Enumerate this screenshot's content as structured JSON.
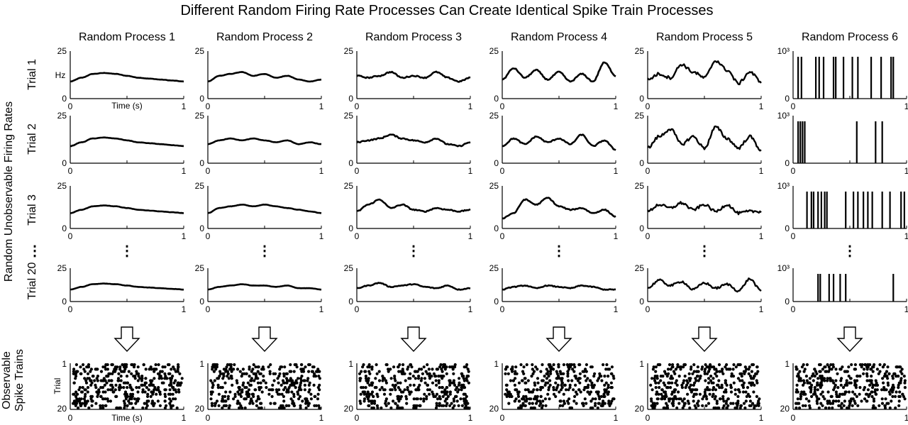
{
  "title": "Different Random Firing Rate Processes Can Create Identical Spike Train Processes",
  "side_labels": {
    "rates": "Random Unobservable Firing Rates",
    "spikes_line1": "Observable",
    "spikes_line2": "Spike Trains"
  },
  "ellipsis": "⋮",
  "rate_units": "Hz",
  "time_label": "Time (s)",
  "trial_axis_label": "Trial",
  "rows": [
    {
      "label": "Trial 1"
    },
    {
      "label": "Trial 2"
    },
    {
      "label": "Trial 3"
    },
    {
      "label": "Trial 20"
    }
  ],
  "colors": {
    "ink": "#000000",
    "background": "#ffffff"
  },
  "chart_data": {
    "type": "line",
    "description_note": "",
    "x_range": [
      0,
      1
    ],
    "x_ticks": [
      "0",
      "1"
    ],
    "raster": {
      "y_ticks": [
        "1",
        "20"
      ],
      "trials": 20,
      "spikes_per_trial_approx": 20
    },
    "panels": [
      {
        "title": "Random Process 1",
        "y_ticks": [
          "0",
          "25"
        ],
        "y_range": [
          0,
          25
        ],
        "trials": [
          {
            "x": [
              0,
              0.1,
              0.2,
              0.3,
              0.4,
              0.5,
              0.6,
              0.7,
              0.8,
              0.9,
              1
            ],
            "y": [
              9,
              11,
              13,
              13.5,
              13,
              12,
              11,
              10.5,
              10,
              9.5,
              9
            ]
          },
          {
            "x": [
              0,
              0.1,
              0.2,
              0.3,
              0.4,
              0.5,
              0.6,
              0.7,
              0.8,
              0.9,
              1
            ],
            "y": [
              9,
              11,
              13,
              13.5,
              13,
              12,
              11,
              10.5,
              10,
              9.5,
              9
            ]
          },
          {
            "x": [
              0,
              0.1,
              0.2,
              0.3,
              0.4,
              0.5,
              0.6,
              0.7,
              0.8,
              0.9,
              1
            ],
            "y": [
              9,
              11,
              13,
              13.5,
              13,
              12,
              11,
              10.5,
              10,
              9.5,
              9
            ]
          },
          {
            "x": [
              0,
              0.1,
              0.2,
              0.3,
              0.4,
              0.5,
              0.6,
              0.7,
              0.8,
              0.9,
              1
            ],
            "y": [
              9,
              11,
              13,
              13.5,
              13,
              12,
              11,
              10.5,
              10,
              9.5,
              9
            ]
          }
        ]
      },
      {
        "title": "Random Process 2",
        "y_ticks": [
          "0",
          "25"
        ],
        "y_range": [
          0,
          25
        ],
        "trials": [
          {
            "x": [
              0,
              0.1,
              0.2,
              0.3,
              0.4,
              0.5,
              0.6,
              0.7,
              0.8,
              0.9,
              1
            ],
            "y": [
              9,
              12,
              13,
              14,
              12,
              13,
              11,
              12,
              10,
              9,
              10
            ]
          },
          {
            "x": [
              0,
              0.1,
              0.2,
              0.3,
              0.4,
              0.5,
              0.6,
              0.7,
              0.8,
              0.9,
              1
            ],
            "y": [
              10,
              12,
              13,
              12,
              13,
              12,
              11,
              12,
              10,
              11,
              10
            ]
          },
          {
            "x": [
              0,
              0.1,
              0.2,
              0.3,
              0.4,
              0.5,
              0.6,
              0.7,
              0.8,
              0.9,
              1
            ],
            "y": [
              9,
              12,
              13,
              14,
              13,
              14,
              13,
              12,
              11,
              10,
              9
            ]
          },
          {
            "x": [
              0,
              0.1,
              0.2,
              0.3,
              0.4,
              0.5,
              0.6,
              0.7,
              0.8,
              0.9,
              1
            ],
            "y": [
              9,
              11,
              12,
              13,
              12,
              12,
              11,
              12,
              10,
              10,
              9
            ]
          }
        ]
      },
      {
        "title": "Random Process 3",
        "y_ticks": [
          "0",
          "25"
        ],
        "y_range": [
          0,
          25
        ],
        "trials": [
          {
            "x": [
              0,
              0.1,
              0.2,
              0.3,
              0.4,
              0.5,
              0.6,
              0.7,
              0.8,
              0.9,
              1
            ],
            "y": [
              12,
              11,
              12,
              14,
              11,
              12,
              11,
              14,
              11,
              9,
              11
            ]
          },
          {
            "x": [
              0,
              0.1,
              0.2,
              0.3,
              0.4,
              0.5,
              0.6,
              0.7,
              0.8,
              0.9,
              1
            ],
            "y": [
              11,
              12,
              13,
              15,
              13,
              12,
              11,
              13,
              10,
              9,
              11
            ]
          },
          {
            "x": [
              0,
              0.1,
              0.2,
              0.3,
              0.4,
              0.5,
              0.6,
              0.7,
              0.8,
              0.9,
              1
            ],
            "y": [
              10,
              14,
              17,
              12,
              14,
              11,
              10,
              12,
              11,
              10,
              11
            ]
          },
          {
            "x": [
              0,
              0.1,
              0.2,
              0.3,
              0.4,
              0.5,
              0.6,
              0.7,
              0.8,
              0.9,
              1
            ],
            "y": [
              10,
              12,
              14,
              11,
              12,
              13,
              11,
              10,
              12,
              9,
              10
            ]
          }
        ]
      },
      {
        "title": "Random Process 4",
        "y_ticks": [
          "0",
          "25"
        ],
        "y_range": [
          0,
          25
        ],
        "trials": [
          {
            "x": [
              0,
              0.1,
              0.2,
              0.3,
              0.4,
              0.5,
              0.6,
              0.7,
              0.8,
              0.9,
              1
            ],
            "y": [
              10,
              16,
              11,
              15,
              10,
              14,
              9,
              13,
              9,
              19,
              12
            ]
          },
          {
            "x": [
              0,
              0.1,
              0.2,
              0.3,
              0.4,
              0.5,
              0.6,
              0.7,
              0.8,
              0.9,
              1
            ],
            "y": [
              9,
              13,
              10,
              14,
              11,
              13,
              10,
              15,
              9,
              12,
              7
            ]
          },
          {
            "x": [
              0,
              0.1,
              0.2,
              0.3,
              0.4,
              0.5,
              0.6,
              0.7,
              0.8,
              0.9,
              1
            ],
            "y": [
              6,
              9,
              17,
              14,
              18,
              13,
              11,
              12,
              9,
              11,
              7
            ]
          },
          {
            "x": [
              0,
              0.1,
              0.2,
              0.3,
              0.4,
              0.5,
              0.6,
              0.7,
              0.8,
              0.9,
              1
            ],
            "y": [
              9,
              11,
              12,
              10,
              12,
              11,
              10,
              12,
              11,
              9,
              9
            ]
          }
        ]
      },
      {
        "title": "Random Process 5",
        "y_ticks": [
          "0",
          "25"
        ],
        "y_range": [
          0,
          25
        ],
        "trials": [
          {
            "x": [
              0,
              0.1,
              0.2,
              0.3,
              0.4,
              0.5,
              0.6,
              0.7,
              0.8,
              0.9,
              1
            ],
            "y": [
              10,
              13,
              11,
              18,
              14,
              11,
              20,
              15,
              8,
              14,
              9
            ]
          },
          {
            "x": [
              0,
              0.1,
              0.2,
              0.3,
              0.4,
              0.5,
              0.6,
              0.7,
              0.8,
              0.9,
              1
            ],
            "y": [
              8,
              14,
              18,
              10,
              14,
              8,
              19,
              13,
              8,
              14,
              7
            ]
          },
          {
            "x": [
              0,
              0.1,
              0.2,
              0.3,
              0.4,
              0.5,
              0.6,
              0.7,
              0.8,
              0.9,
              1
            ],
            "y": [
              10,
              14,
              12,
              15,
              11,
              14,
              10,
              14,
              9,
              10,
              10
            ]
          },
          {
            "x": [
              0,
              0.1,
              0.2,
              0.3,
              0.4,
              0.5,
              0.6,
              0.7,
              0.8,
              0.9,
              1
            ],
            "y": [
              10,
              16,
              12,
              15,
              9,
              14,
              10,
              13,
              8,
              17,
              8
            ]
          }
        ]
      },
      {
        "title": "Random Process 6",
        "y_ticks": [
          "0",
          "10³"
        ],
        "y_range": [
          0,
          1000
        ],
        "spike_rates": [
          [
            0.02,
            0.05,
            0.18,
            0.21,
            0.25,
            0.34,
            0.36,
            0.43,
            0.51,
            0.56,
            0.68,
            0.77,
            0.86,
            0.88
          ],
          [
            0.02,
            0.04,
            0.06,
            0.08,
            0.55,
            0.72,
            0.78
          ],
          [
            0.1,
            0.14,
            0.16,
            0.2,
            0.23,
            0.26,
            0.28,
            0.45,
            0.52,
            0.56,
            0.61,
            0.65,
            0.69,
            0.78,
            0.85,
            0.95,
            0.98
          ],
          [
            0.2,
            0.22,
            0.3,
            0.34,
            0.4,
            0.45,
            0.88
          ]
        ]
      }
    ]
  }
}
